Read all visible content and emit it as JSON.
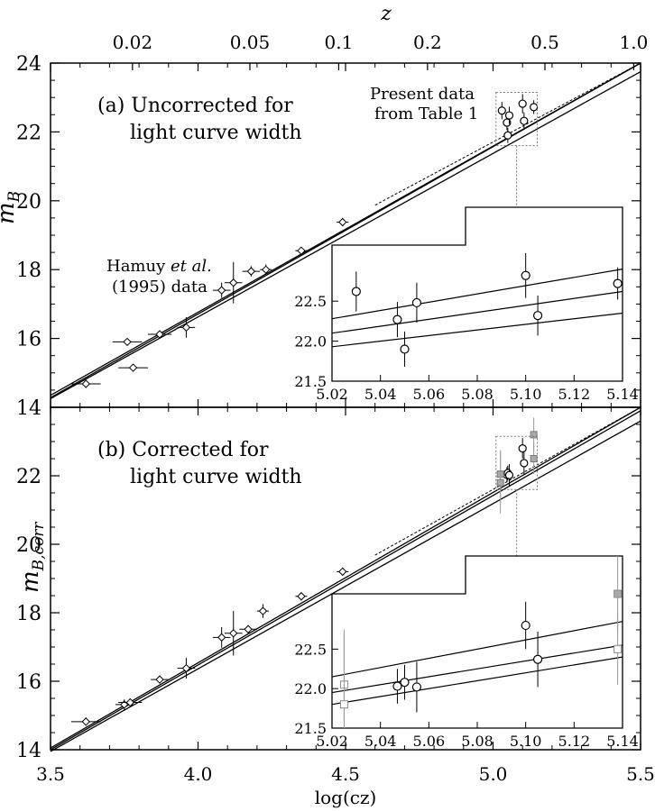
{
  "chart_data": {
    "type": "scatter",
    "top_axis": {
      "label": "z",
      "ticks": [
        {
          "v": 0.02,
          "label": "0.02"
        },
        {
          "v": 0.05,
          "label": "0.05"
        },
        {
          "v": 0.1,
          "label": "0.1"
        },
        {
          "v": 0.2,
          "label": "0.2"
        },
        {
          "v": 0.5,
          "label": "0.5"
        },
        {
          "v": 1.0,
          "label": "1.0"
        }
      ]
    },
    "x_axis": {
      "label": "log(cz)",
      "range": [
        3.5,
        5.5
      ],
      "ticks": [
        {
          "v": 3.5,
          "label": "3.5"
        },
        {
          "v": 4.0,
          "label": "4.0"
        },
        {
          "v": 4.5,
          "label": "4.5"
        },
        {
          "v": 5.0,
          "label": "5.0"
        },
        {
          "v": 5.5,
          "label": "5.5"
        }
      ]
    },
    "panels": [
      {
        "id": "a",
        "ylabel": "m_B",
        "ylim": [
          14,
          24
        ],
        "yticks": [
          {
            "v": 14,
            "label": "14"
          },
          {
            "v": 16,
            "label": "16"
          },
          {
            "v": 18,
            "label": "18"
          },
          {
            "v": 20,
            "label": "20"
          },
          {
            "v": 22,
            "label": "22"
          },
          {
            "v": 24,
            "label": "24"
          }
        ],
        "title_line1": "(a) Uncorrected for",
        "title_line2": "light curve width",
        "hamuy_line1": "Hamuy",
        "hamuy_etal": "et al.",
        "hamuy_line2": "(1995) data",
        "present_line1": "Present data",
        "present_line2": "from Table 1",
        "lines": [
          {
            "name": "upper",
            "x0": 3.5,
            "y0": 14.35,
            "x1": 5.5,
            "y1": 24.3,
            "style": "solid"
          },
          {
            "name": "middle",
            "x0": 3.5,
            "y0": 14.28,
            "x1": 5.5,
            "y1": 24.0,
            "style": "solid"
          },
          {
            "name": "lower",
            "x0": 3.5,
            "y0": 14.25,
            "x1": 5.5,
            "y1": 23.75,
            "style": "solid"
          }
        ],
        "hamuy": [
          {
            "x": 3.62,
            "y": 14.68,
            "xe": 0.05,
            "ye": 0.08
          },
          {
            "x": 3.76,
            "y": 15.9,
            "xe": 0.05,
            "ye": 0.08
          },
          {
            "x": 3.78,
            "y": 15.15,
            "xe": 0.05,
            "ye": 0.08
          },
          {
            "x": 3.87,
            "y": 16.12,
            "xe": 0.04,
            "ye": 0.1
          },
          {
            "x": 3.96,
            "y": 16.32,
            "xe": 0.03,
            "ye": 0.3
          },
          {
            "x": 4.08,
            "y": 17.4,
            "xe": 0.03,
            "ye": 0.22
          },
          {
            "x": 4.12,
            "y": 17.62,
            "xe": 0.03,
            "ye": 0.6
          },
          {
            "x": 4.18,
            "y": 17.95,
            "xe": 0.03,
            "ye": 0.15
          },
          {
            "x": 4.23,
            "y": 18.0,
            "xe": 0.02,
            "ye": 0.15
          },
          {
            "x": 4.35,
            "y": 18.55,
            "xe": 0.02,
            "ye": 0.1
          },
          {
            "x": 4.49,
            "y": 19.38,
            "xe": 0.02,
            "ye": 0.12
          }
        ],
        "present": [
          {
            "x": 5.03,
            "y": 22.62,
            "ye": 0.25
          },
          {
            "x": 5.047,
            "y": 22.27,
            "ye": 0.22
          },
          {
            "x": 5.05,
            "y": 21.9,
            "ye": 0.22
          },
          {
            "x": 5.055,
            "y": 22.48,
            "ye": 0.25
          },
          {
            "x": 5.1,
            "y": 22.82,
            "ye": 0.28
          },
          {
            "x": 5.105,
            "y": 22.32,
            "ye": 0.25
          },
          {
            "x": 5.138,
            "y": 22.72,
            "ye": 0.2
          }
        ],
        "inset": {
          "xlim": [
            5.02,
            5.14
          ],
          "ylim": [
            21.5,
            23.2
          ],
          "xticks": [
            {
              "v": 5.02,
              "label": "5.02"
            },
            {
              "v": 5.04,
              "label": "5.04"
            },
            {
              "v": 5.06,
              "label": "5.06"
            },
            {
              "v": 5.08,
              "label": "5.08"
            },
            {
              "v": 5.1,
              "label": "5.10"
            },
            {
              "v": 5.12,
              "label": "5.12"
            },
            {
              "v": 5.14,
              "label": "5.14"
            }
          ],
          "yticks": [
            {
              "v": 21.5,
              "label": "21.5"
            },
            {
              "v": 22.0,
              "label": "22.0"
            },
            {
              "v": 22.5,
              "label": "22.5"
            }
          ],
          "lines": [
            {
              "x0": 5.02,
              "y0": 22.28,
              "x1": 5.14,
              "y1": 22.9
            },
            {
              "x0": 5.02,
              "y0": 22.1,
              "x1": 5.14,
              "y1": 22.62
            },
            {
              "x0": 5.02,
              "y0": 21.93,
              "x1": 5.14,
              "y1": 22.35
            }
          ]
        }
      },
      {
        "id": "b",
        "ylabel": "m_B,corr",
        "ylim": [
          14,
          24
        ],
        "yticks": [
          {
            "v": 14,
            "label": "14"
          },
          {
            "v": 16,
            "label": "16"
          },
          {
            "v": 18,
            "label": "18"
          },
          {
            "v": 20,
            "label": "20"
          },
          {
            "v": 22,
            "label": "22"
          }
        ],
        "title_line1": "(b) Corrected for",
        "title_line2": "light curve width",
        "lines": [
          {
            "name": "upper",
            "x0": 3.5,
            "y0": 14.05,
            "x1": 5.5,
            "y1": 24.2,
            "style": "solid"
          },
          {
            "name": "middle",
            "x0": 3.5,
            "y0": 14.0,
            "x1": 5.5,
            "y1": 23.9,
            "style": "solid"
          },
          {
            "name": "lower",
            "x0": 3.5,
            "y0": 13.95,
            "x1": 5.5,
            "y1": 23.6,
            "style": "solid"
          }
        ],
        "hamuy": [
          {
            "x": 3.62,
            "y": 14.82,
            "xe": 0.05,
            "ye": 0.12
          },
          {
            "x": 3.75,
            "y": 15.32,
            "xe": 0.03,
            "ye": 0.15
          },
          {
            "x": 3.77,
            "y": 15.38,
            "xe": 0.04,
            "ye": 0.12
          },
          {
            "x": 3.87,
            "y": 16.05,
            "xe": 0.03,
            "ye": 0.12
          },
          {
            "x": 3.96,
            "y": 16.38,
            "xe": 0.03,
            "ye": 0.3
          },
          {
            "x": 4.08,
            "y": 17.28,
            "xe": 0.03,
            "ye": 0.3
          },
          {
            "x": 4.12,
            "y": 17.4,
            "xe": 0.03,
            "ye": 0.65
          },
          {
            "x": 4.17,
            "y": 17.52,
            "xe": 0.03,
            "ye": 0.12
          },
          {
            "x": 4.22,
            "y": 18.05,
            "xe": 0.02,
            "ye": 0.2
          },
          {
            "x": 4.35,
            "y": 18.48,
            "xe": 0.02,
            "ye": 0.12
          },
          {
            "x": 4.49,
            "y": 19.2,
            "xe": 0.02,
            "ye": 0.12
          }
        ],
        "present": [
          {
            "x": 5.047,
            "y": 22.03,
            "ye": 0.22
          },
          {
            "x": 5.05,
            "y": 22.08,
            "ye": 0.22
          },
          {
            "x": 5.055,
            "y": 22.02,
            "ye": 0.32
          },
          {
            "x": 5.1,
            "y": 22.8,
            "ye": 0.3
          },
          {
            "x": 5.105,
            "y": 22.37,
            "ye": 0.35
          }
        ],
        "gray_points": [
          {
            "x": 5.025,
            "y": 22.05,
            "ye": 0.7
          },
          {
            "x": 5.025,
            "y": 21.8,
            "ye": 0.9
          },
          {
            "x": 5.138,
            "y": 23.2,
            "ye": 0.5
          },
          {
            "x": 5.138,
            "y": 22.5,
            "ye": 0.45
          }
        ],
        "inset": {
          "xlim": [
            5.02,
            5.14
          ],
          "ylim": [
            21.5,
            23.2
          ],
          "xticks": [
            {
              "v": 5.02,
              "label": "5.02"
            },
            {
              "v": 5.04,
              "label": "5.04"
            },
            {
              "v": 5.06,
              "label": "5.06"
            },
            {
              "v": 5.08,
              "label": "5.08"
            },
            {
              "v": 5.1,
              "label": "5.10"
            },
            {
              "v": 5.12,
              "label": "5.12"
            },
            {
              "v": 5.14,
              "label": "5.14"
            }
          ],
          "yticks": [
            {
              "v": 21.5,
              "label": "21.5"
            },
            {
              "v": 22.0,
              "label": "22.0"
            },
            {
              "v": 22.5,
              "label": "22.5"
            }
          ],
          "lines": [
            {
              "x0": 5.02,
              "y0": 22.15,
              "x1": 5.14,
              "y1": 22.85
            },
            {
              "x0": 5.02,
              "y0": 21.95,
              "x1": 5.14,
              "y1": 22.55
            },
            {
              "x0": 5.02,
              "y0": 21.8,
              "x1": 5.14,
              "y1": 22.4
            }
          ]
        }
      }
    ]
  }
}
